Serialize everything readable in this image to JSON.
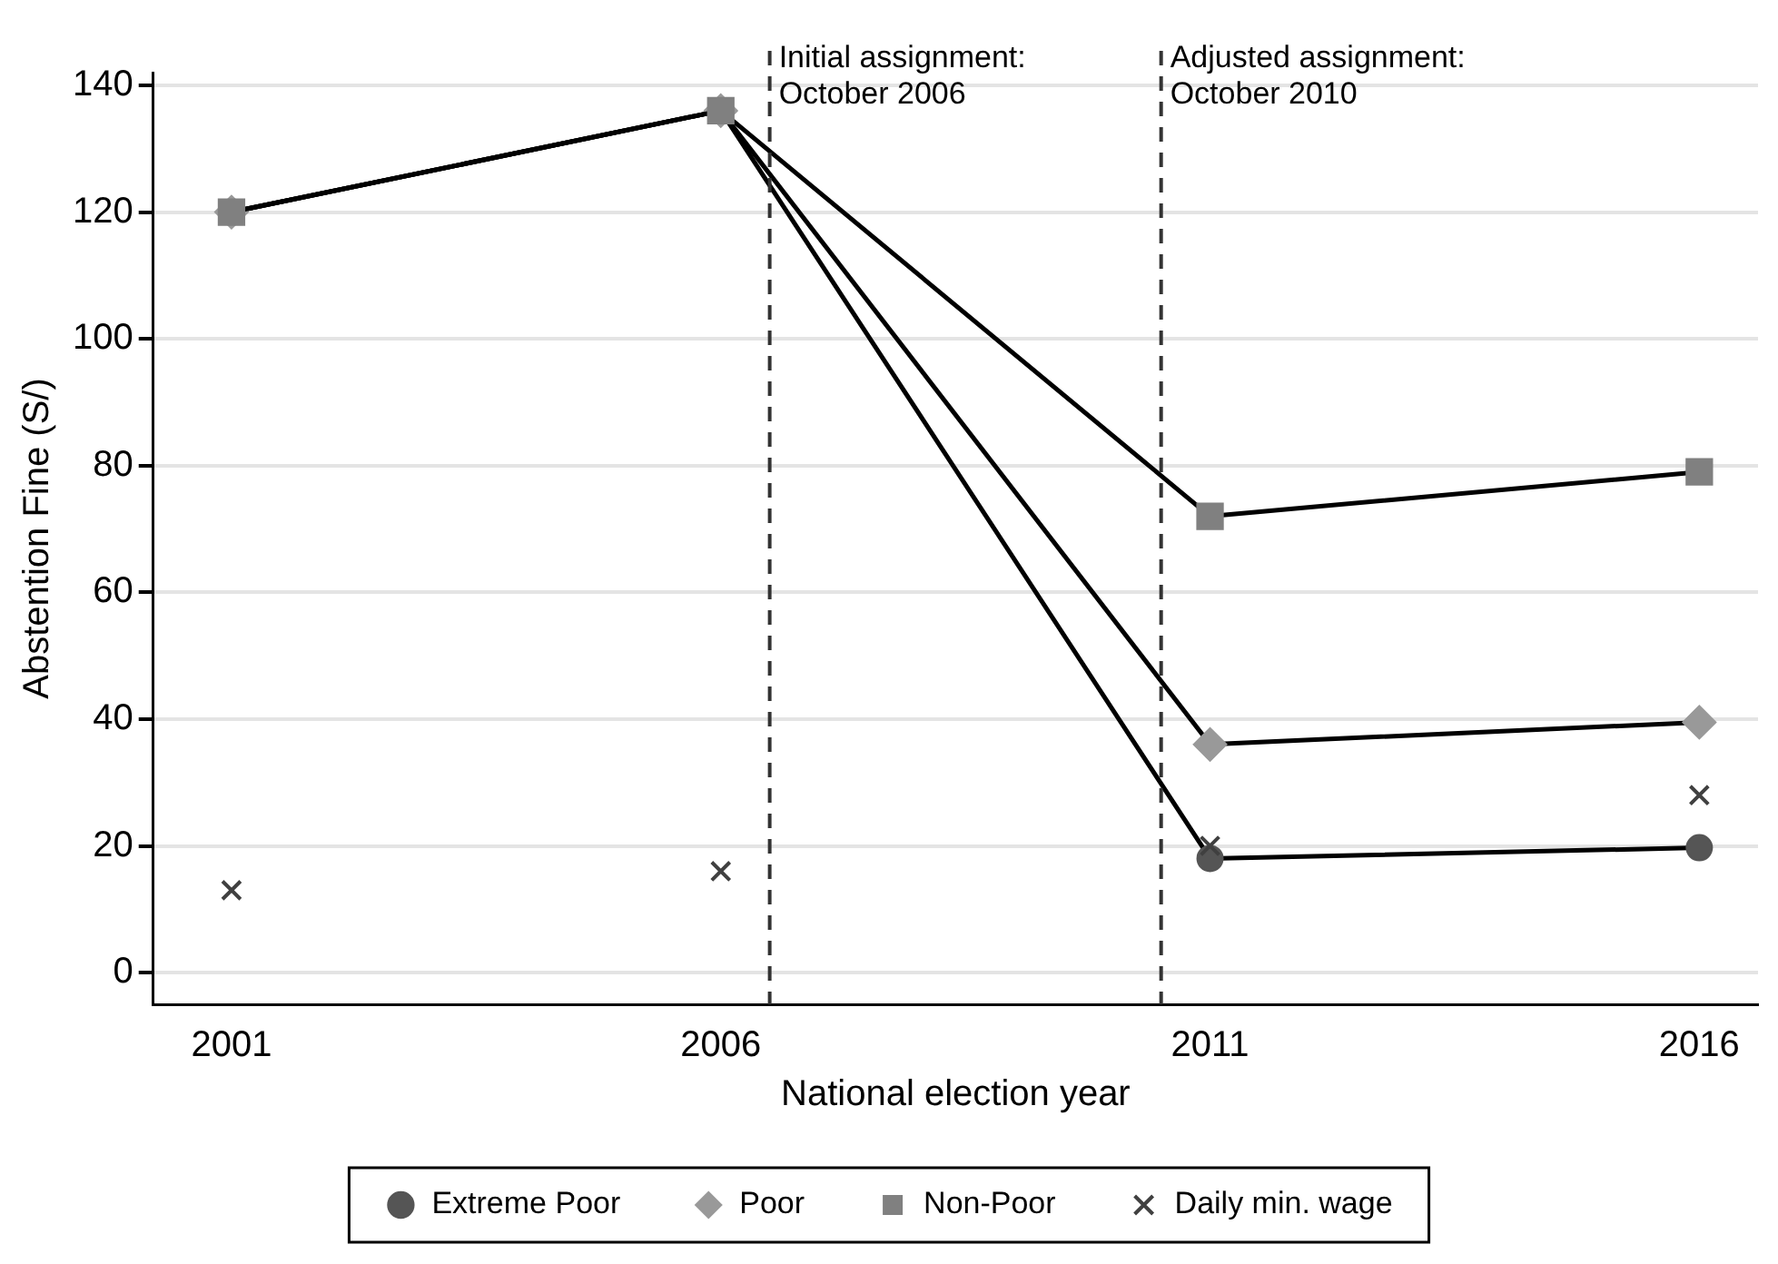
{
  "chart_data": {
    "type": "line",
    "xlabel": "National election year",
    "ylabel": "Abstention Fine (S/)",
    "xlim": [
      2000.2,
      2016.6
    ],
    "xticks": [
      2001,
      2006,
      2011,
      2016
    ],
    "ylim": [
      -5,
      142
    ],
    "yticks": [
      0,
      20,
      40,
      60,
      80,
      100,
      120,
      140
    ],
    "grid": "y",
    "legend": "bottom",
    "line_style": "solid",
    "series": [
      {
        "name": "Extreme Poor",
        "type": "line",
        "marker": "circle",
        "color": "#555555",
        "x": [
          2001,
          2006,
          2011,
          2016
        ],
        "values": [
          120,
          136,
          18,
          19.7
        ]
      },
      {
        "name": "Poor",
        "type": "line",
        "marker": "diamond",
        "color": "#999999",
        "x": [
          2001,
          2006,
          2011,
          2016
        ],
        "values": [
          120,
          136,
          36,
          39.5
        ]
      },
      {
        "name": "Non-Poor",
        "type": "line",
        "marker": "square",
        "color": "#808080",
        "x": [
          2001,
          2006,
          2011,
          2016
        ],
        "values": [
          120,
          136,
          72,
          79
        ]
      },
      {
        "name": "Daily min. wage",
        "type": "scatter",
        "marker": "cross",
        "color": "#404040",
        "x": [
          2001,
          2006,
          2011,
          2016
        ],
        "values": [
          13,
          16,
          20,
          28
        ]
      }
    ],
    "ref_lines": [
      {
        "axis": "x",
        "value": 2006.5,
        "label": "Initial assignment:\nOctober 2006",
        "color": "#333333",
        "line_style": "dashed"
      },
      {
        "axis": "x",
        "value": 2010.5,
        "label": "Adjusted assignment:\nOctober 2010",
        "color": "#333333",
        "line_style": "dashed"
      }
    ]
  }
}
